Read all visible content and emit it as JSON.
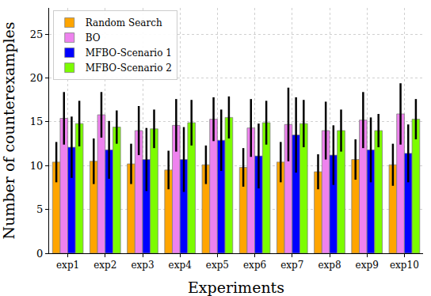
{
  "chart_data": {
    "type": "bar",
    "x_label": "Experiments",
    "y_label": "Number of counterexamples",
    "categories": [
      "exp1",
      "exp2",
      "exp3",
      "exp4",
      "exp5",
      "exp6",
      "exp7",
      "exp8",
      "exp9",
      "exp10"
    ],
    "series": [
      {
        "name": "Random Search",
        "color": "#ffa500",
        "values": [
          10.4,
          10.5,
          10.2,
          9.5,
          10.1,
          9.8,
          10.4,
          9.3,
          10.7,
          10.1
        ],
        "errors": [
          2.3,
          2.6,
          2.3,
          2.2,
          2.2,
          2.2,
          2.3,
          2.0,
          2.3,
          2.4
        ]
      },
      {
        "name": "BO",
        "color": "#ee82ee",
        "values": [
          15.4,
          15.8,
          14.0,
          14.6,
          15.3,
          14.3,
          14.7,
          14.0,
          15.2,
          15.9
        ],
        "errors": [
          3.0,
          2.6,
          2.8,
          3.0,
          2.5,
          3.3,
          4.2,
          3.3,
          3.2,
          3.5
        ]
      },
      {
        "name": "MFBO-Scenario 1",
        "color": "#0000ff",
        "values": [
          12.1,
          11.8,
          10.7,
          10.7,
          12.9,
          11.1,
          13.5,
          11.2,
          11.8,
          11.4
        ],
        "errors": [
          3.5,
          3.3,
          3.6,
          3.7,
          3.5,
          3.7,
          4.3,
          3.4,
          3.7,
          3.3
        ]
      },
      {
        "name": "MFBO-Scenario 2",
        "color": "#7cfc00",
        "values": [
          14.8,
          14.4,
          14.2,
          14.9,
          15.5,
          14.9,
          14.8,
          14.0,
          14.0,
          15.3
        ],
        "errors": [
          2.6,
          1.9,
          2.2,
          2.6,
          2.4,
          2.5,
          2.7,
          2.4,
          1.9,
          2.3
        ]
      }
    ],
    "ylim": [
      0,
      28
    ],
    "yticks": [
      0,
      5,
      10,
      15,
      20,
      25
    ],
    "grid": true,
    "legend": "upper left"
  }
}
